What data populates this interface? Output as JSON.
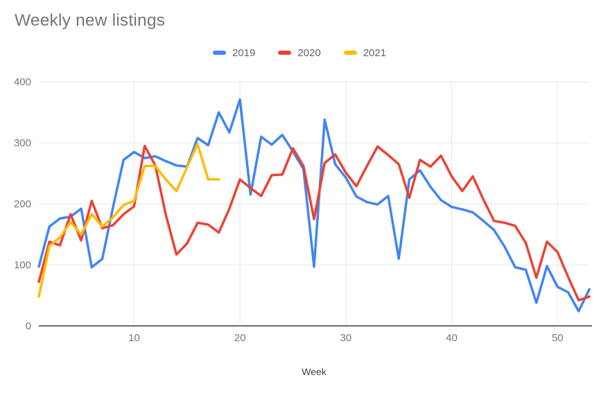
{
  "chart_data": {
    "type": "line",
    "title": "Weekly new listings",
    "xlabel": "Week",
    "ylabel": "",
    "xlim": [
      1,
      53
    ],
    "ylim": [
      0,
      400
    ],
    "x_ticks": [
      10,
      20,
      30,
      40,
      50
    ],
    "y_ticks": [
      0,
      100,
      200,
      300,
      400
    ],
    "grid": true,
    "legend_position": "top",
    "x": [
      1,
      2,
      3,
      4,
      5,
      6,
      7,
      8,
      9,
      10,
      11,
      12,
      13,
      14,
      15,
      16,
      17,
      18,
      19,
      20,
      21,
      22,
      23,
      24,
      25,
      26,
      27,
      28,
      29,
      30,
      31,
      32,
      33,
      34,
      35,
      36,
      37,
      38,
      39,
      40,
      41,
      42,
      43,
      44,
      45,
      46,
      47,
      48,
      49,
      50,
      51,
      52,
      53
    ],
    "series": [
      {
        "name": "2019",
        "color": "#4285f4",
        "values": [
          97,
          163,
          176,
          179,
          192,
          96,
          110,
          194,
          272,
          285,
          275,
          278,
          270,
          263,
          261,
          308,
          296,
          350,
          317,
          371,
          215,
          310,
          297,
          313,
          286,
          257,
          97,
          338,
          265,
          243,
          212,
          203,
          199,
          213,
          110,
          240,
          255,
          228,
          206,
          195,
          191,
          186,
          172,
          157,
          130,
          96,
          92,
          38,
          98,
          64,
          55,
          24,
          60
        ]
      },
      {
        "name": "2020",
        "color": "#ea4335",
        "values": [
          72,
          138,
          132,
          183,
          140,
          205,
          160,
          165,
          183,
          196,
          295,
          263,
          182,
          117,
          135,
          169,
          166,
          153,
          192,
          240,
          226,
          213,
          247,
          248,
          291,
          262,
          175,
          267,
          281,
          251,
          229,
          262,
          294,
          280,
          265,
          210,
          272,
          261,
          279,
          245,
          221,
          245,
          207,
          172,
          169,
          164,
          136,
          79,
          138,
          121,
          80,
          42,
          48
        ]
      },
      {
        "name": "2021",
        "color": "#fbbc04",
        "values": [
          48,
          131,
          145,
          170,
          150,
          183,
          163,
          178,
          198,
          205,
          262,
          262,
          240,
          221,
          260,
          298,
          240,
          240
        ]
      }
    ],
    "style": {
      "grid_color": "#e6e6e6",
      "axis_line_color": "#6b6b6b",
      "title_color": "#757575",
      "tick_label_color": "#757575",
      "axis_title_color": "#424242"
    }
  }
}
